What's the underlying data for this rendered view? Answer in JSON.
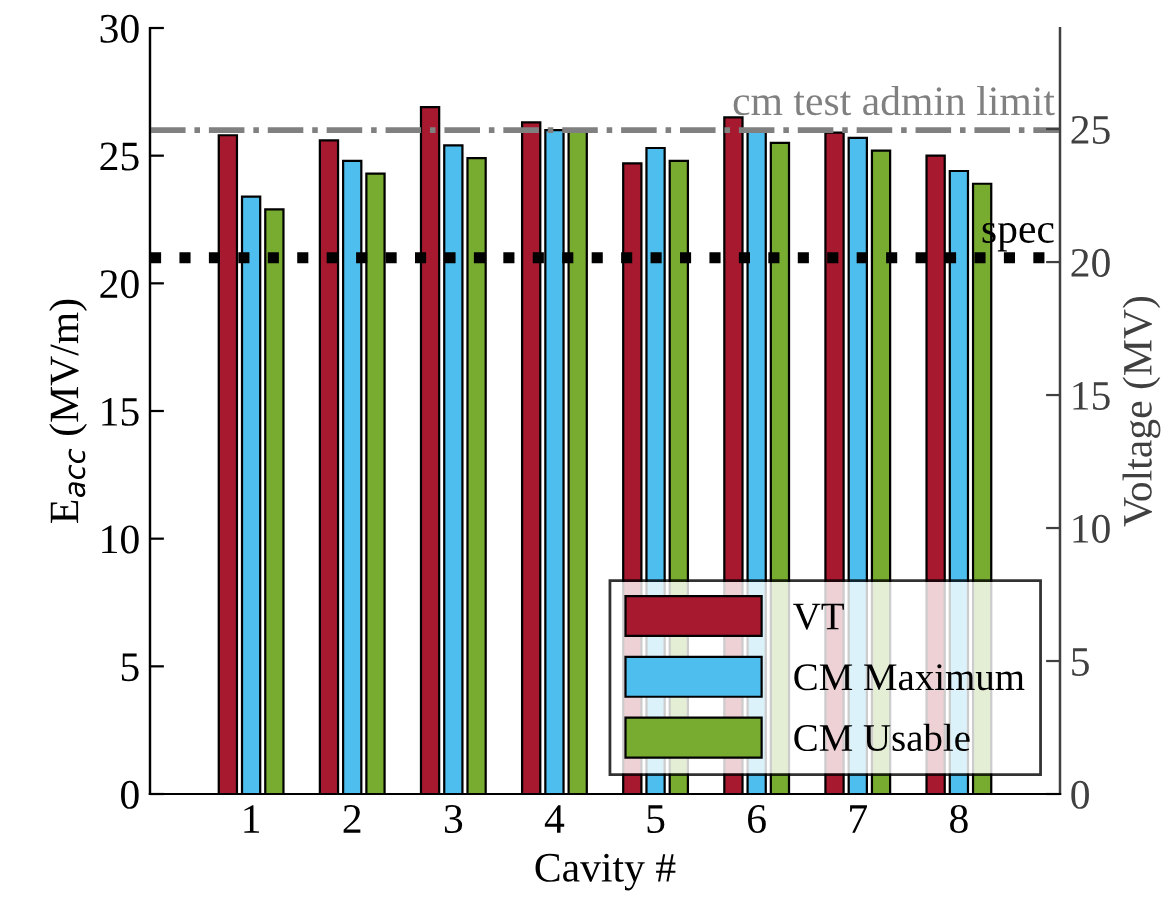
{
  "chart_data": {
    "type": "bar",
    "xlabel": "Cavity #",
    "ylabel": "E$_{acc}$ (MV/m)",
    "y2label": "Voltage (MV)",
    "categories": [
      "1",
      "2",
      "3",
      "4",
      "5",
      "6",
      "7",
      "8"
    ],
    "series": [
      {
        "name": "VT",
        "color": "#a6192e",
        "values": [
          25.8,
          25.6,
          26.9,
          26.3,
          24.7,
          26.5,
          25.9,
          25.0
        ]
      },
      {
        "name": "CM Maximum",
        "color": "#4dbeee",
        "values": [
          23.4,
          24.8,
          25.4,
          26.0,
          25.3,
          26.0,
          25.7,
          24.4
        ]
      },
      {
        "name": "CM Usable",
        "color": "#77ac30",
        "values": [
          22.9,
          24.3,
          24.9,
          26.0,
          24.8,
          25.5,
          25.2,
          23.9
        ]
      }
    ],
    "ylim": [
      0,
      30
    ],
    "yticks": [
      0,
      5,
      10,
      15,
      20,
      25,
      30
    ],
    "y2lim": [
      0,
      28.8
    ],
    "y2ticks": [
      0,
      5,
      10,
      15,
      20,
      25
    ],
    "ref_lines": [
      {
        "axis": "y",
        "value": 26,
        "label": "cm test admin limit",
        "color": "#808080",
        "line_style": "dashdot"
      },
      {
        "axis": "y",
        "value": 21,
        "label": "spec",
        "color": "#000000",
        "line_style": "dotted"
      }
    ],
    "legend": "bottom right",
    "grid": false
  }
}
